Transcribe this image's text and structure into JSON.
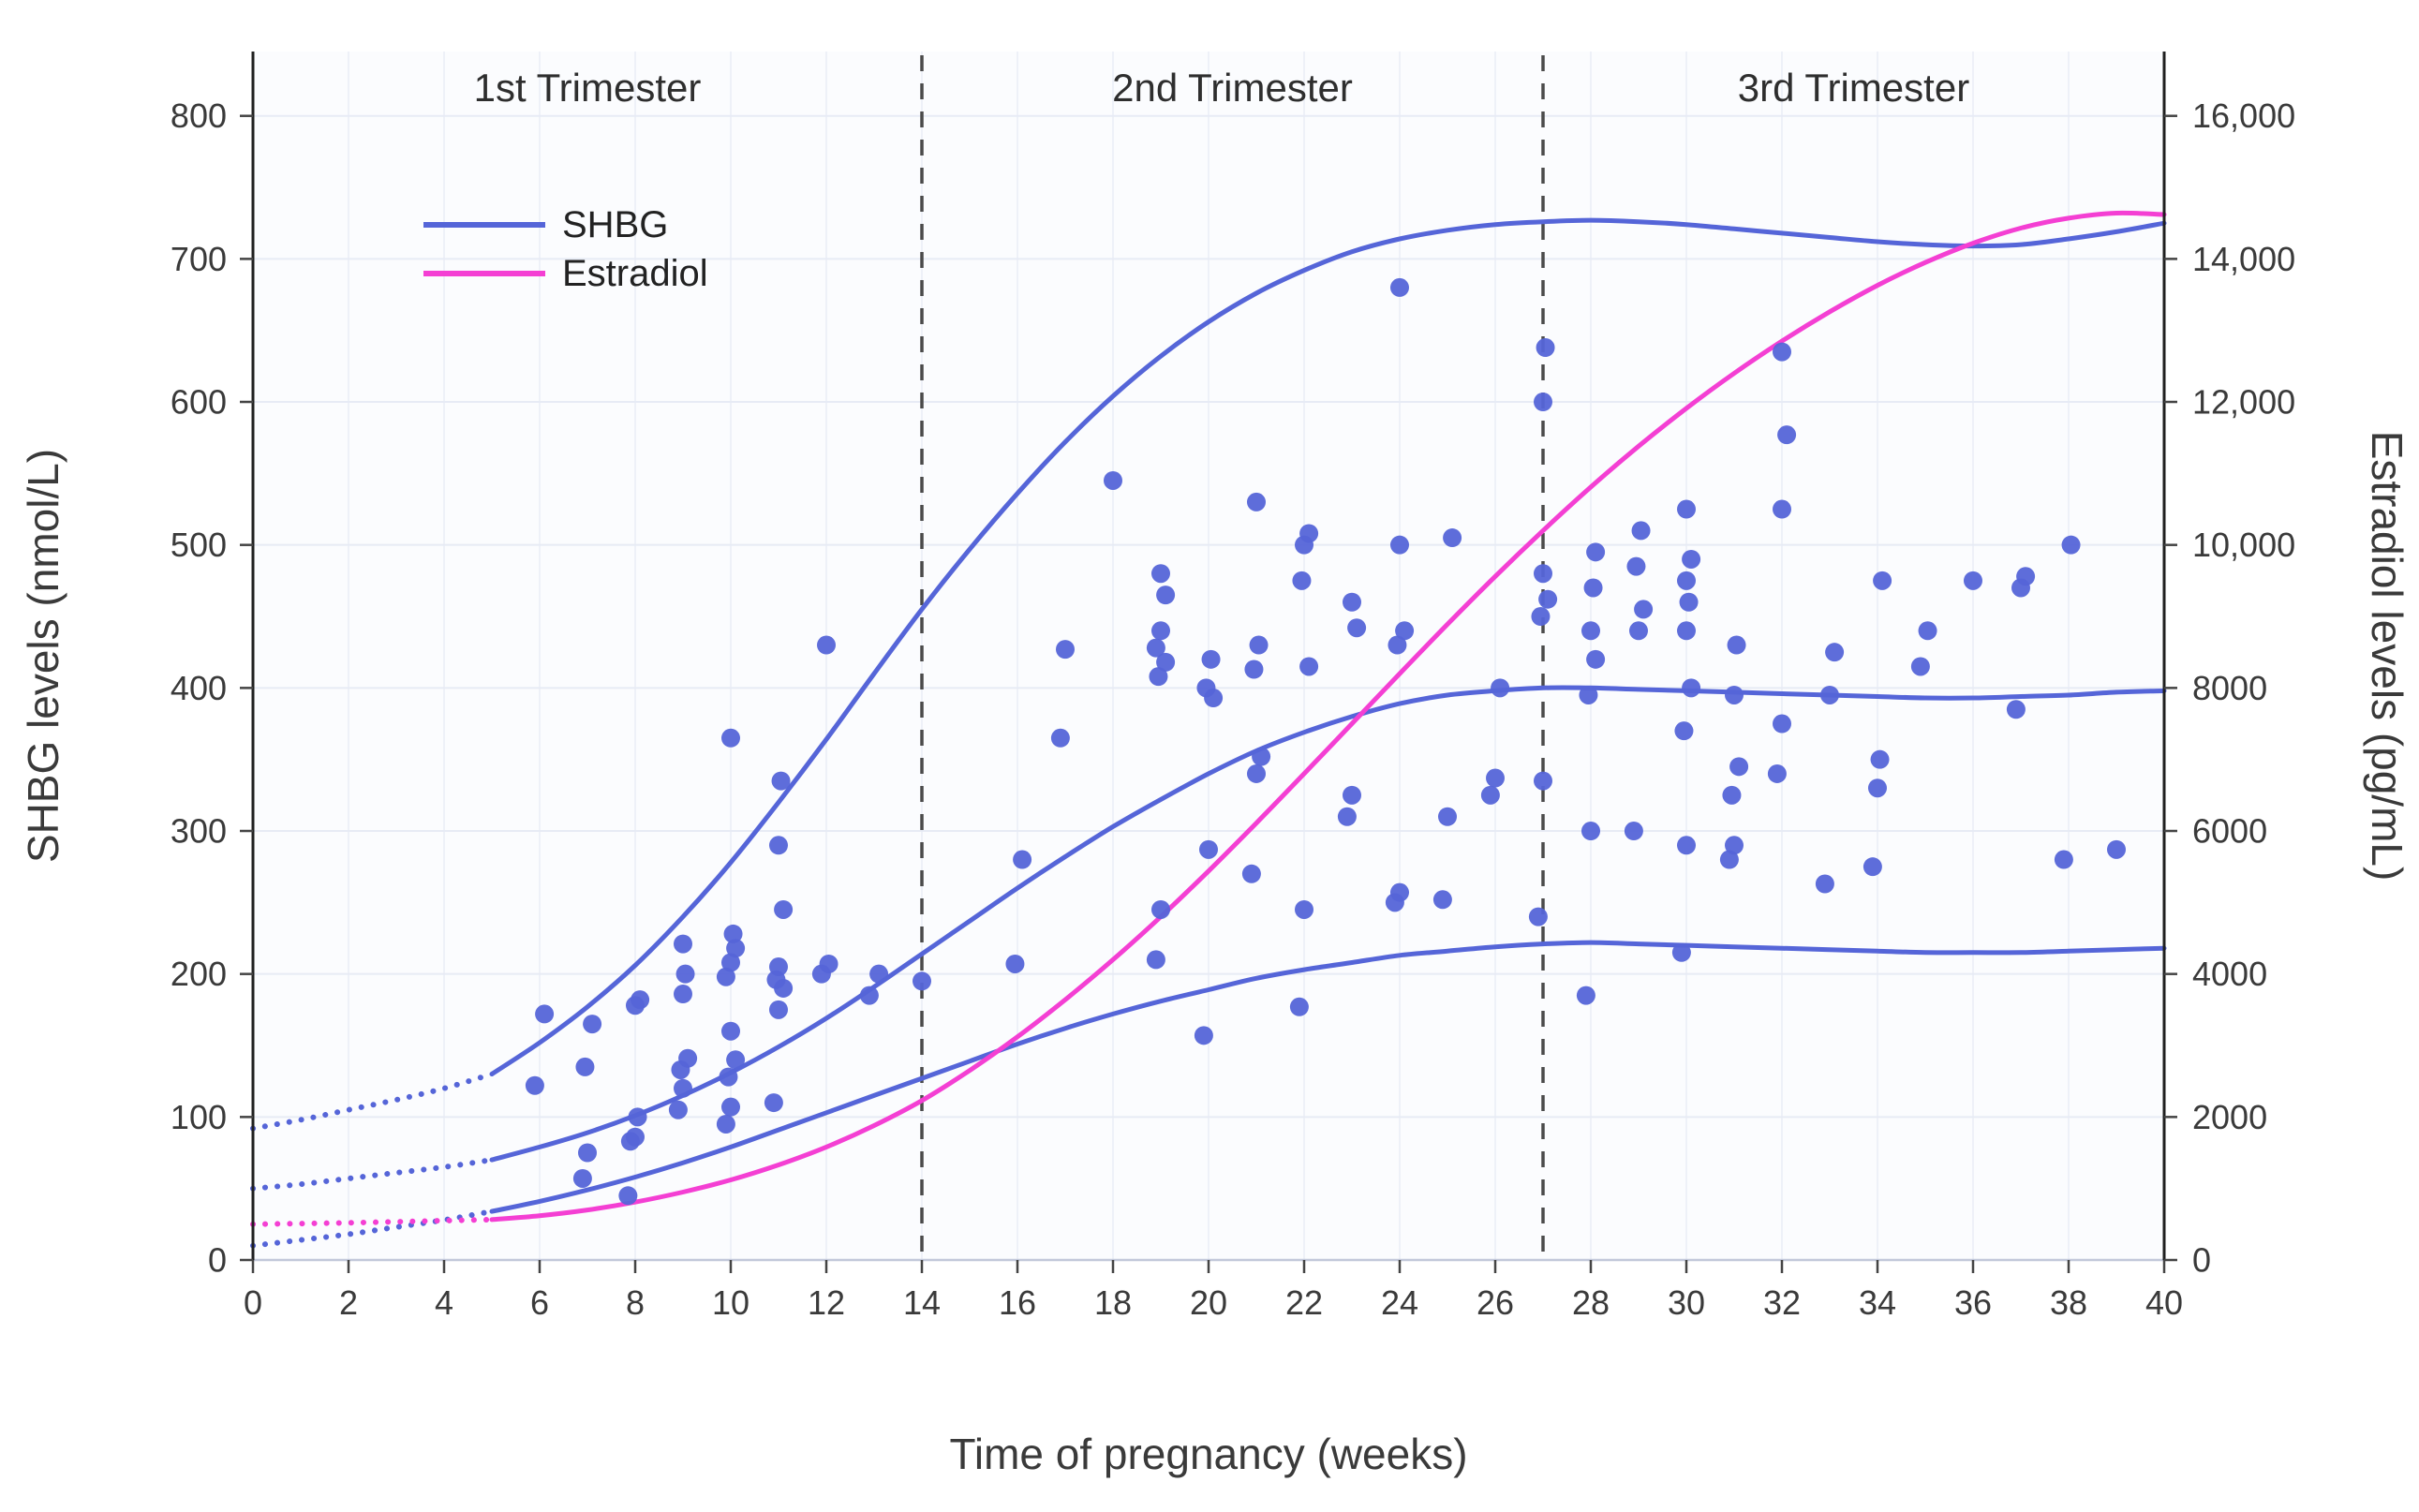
{
  "colors": {
    "shbg": "#5565d8",
    "estradiol": "#f43fd3",
    "grid": "#e7ebf5",
    "grid_vertical": "#eef1f8",
    "divider": "#4a4a4a",
    "text": "#3a3a3a",
    "spine": "#1f1f1f",
    "baseline": "#c2c8da",
    "plot_background": "#fbfcfe"
  },
  "chart_data": {
    "type": "line+scatter",
    "title": "",
    "xlabel": "Time of pregnancy (weeks)",
    "ylabel_left": "SHBG levels (nmol/L)",
    "ylabel_right": "Estradiol levels (pg/mL)",
    "xlim": [
      0,
      40
    ],
    "ylim_left": [
      0,
      845
    ],
    "ylim_right": [
      0,
      16900
    ],
    "x_ticks": [
      0,
      2,
      4,
      6,
      8,
      10,
      12,
      14,
      16,
      18,
      20,
      22,
      24,
      26,
      28,
      30,
      32,
      34,
      36,
      38,
      40
    ],
    "y_left_ticks": [
      0,
      100,
      200,
      300,
      400,
      500,
      600,
      700,
      800
    ],
    "y_right_ticks": [
      {
        "value": 0,
        "label": "0"
      },
      {
        "value": 2000,
        "label": "2000"
      },
      {
        "value": 4000,
        "label": "4000"
      },
      {
        "value": 6000,
        "label": "6000"
      },
      {
        "value": 8000,
        "label": "8000"
      },
      {
        "value": 10000,
        "label": "10,000"
      },
      {
        "value": 12000,
        "label": "12,000"
      },
      {
        "value": 14000,
        "label": "14,000"
      },
      {
        "value": 16000,
        "label": "16,000"
      }
    ],
    "grid": true,
    "legend_position": "upper-left-inside",
    "trimesters": {
      "divider_weeks": [
        14,
        27
      ],
      "labels": [
        {
          "text": "1st Trimester",
          "center_week": 7
        },
        {
          "text": "2nd Trimester",
          "center_week": 20.5
        },
        {
          "text": "3rd Trimester",
          "center_week": 33.5
        }
      ]
    },
    "legend": [
      {
        "label": "SHBG",
        "color": "#5565d8"
      },
      {
        "label": "Estradiol",
        "color": "#f43fd3"
      }
    ],
    "series": [
      {
        "id": "shbg-upper",
        "name": "SHBG upper reference limit",
        "axis": "left",
        "color": "#5565d8",
        "dotted_until_week": 5,
        "points": [
          [
            0,
            92
          ],
          [
            1,
            98
          ],
          [
            2,
            105
          ],
          [
            3,
            112
          ],
          [
            4,
            120
          ],
          [
            5,
            130
          ],
          [
            6,
            152
          ],
          [
            7,
            177
          ],
          [
            8,
            206
          ],
          [
            9,
            240
          ],
          [
            10,
            278
          ],
          [
            11,
            320
          ],
          [
            12,
            364
          ],
          [
            13,
            410
          ],
          [
            14,
            455
          ],
          [
            15,
            497
          ],
          [
            16,
            536
          ],
          [
            17,
            572
          ],
          [
            18,
            604
          ],
          [
            19,
            632
          ],
          [
            20,
            656
          ],
          [
            21,
            676
          ],
          [
            22,
            692
          ],
          [
            23,
            705
          ],
          [
            24,
            714
          ],
          [
            25,
            720
          ],
          [
            26,
            724
          ],
          [
            27,
            726
          ],
          [
            28,
            727
          ],
          [
            29,
            726
          ],
          [
            30,
            724
          ],
          [
            31,
            721
          ],
          [
            32,
            718
          ],
          [
            33,
            715
          ],
          [
            34,
            712
          ],
          [
            35,
            710
          ],
          [
            36,
            709
          ],
          [
            37,
            710
          ],
          [
            38,
            714
          ],
          [
            39,
            719
          ],
          [
            40,
            725
          ]
        ]
      },
      {
        "id": "shbg-median",
        "name": "SHBG median",
        "axis": "left",
        "color": "#5565d8",
        "dotted_until_week": 5,
        "points": [
          [
            0,
            50
          ],
          [
            1,
            53
          ],
          [
            2,
            57
          ],
          [
            3,
            61
          ],
          [
            4,
            65
          ],
          [
            5,
            70
          ],
          [
            6,
            79
          ],
          [
            7,
            89
          ],
          [
            8,
            101
          ],
          [
            9,
            115
          ],
          [
            10,
            131
          ],
          [
            11,
            149
          ],
          [
            12,
            169
          ],
          [
            13,
            191
          ],
          [
            14,
            214
          ],
          [
            15,
            237
          ],
          [
            16,
            260
          ],
          [
            17,
            282
          ],
          [
            18,
            303
          ],
          [
            19,
            322
          ],
          [
            20,
            340
          ],
          [
            21,
            356
          ],
          [
            22,
            369
          ],
          [
            23,
            380
          ],
          [
            24,
            389
          ],
          [
            25,
            395
          ],
          [
            26,
            398
          ],
          [
            27,
            400
          ],
          [
            28,
            400
          ],
          [
            29,
            399
          ],
          [
            30,
            398
          ],
          [
            31,
            397
          ],
          [
            32,
            396
          ],
          [
            33,
            395
          ],
          [
            34,
            394
          ],
          [
            35,
            393
          ],
          [
            36,
            393
          ],
          [
            37,
            394
          ],
          [
            38,
            395
          ],
          [
            39,
            397
          ],
          [
            40,
            398
          ]
        ]
      },
      {
        "id": "shbg-lower",
        "name": "SHBG lower reference limit",
        "axis": "left",
        "color": "#5565d8",
        "dotted_until_week": 5,
        "points": [
          [
            0,
            10
          ],
          [
            1,
            14
          ],
          [
            2,
            18
          ],
          [
            3,
            23
          ],
          [
            4,
            28
          ],
          [
            5,
            34
          ],
          [
            6,
            41
          ],
          [
            7,
            49
          ],
          [
            8,
            58
          ],
          [
            9,
            68
          ],
          [
            10,
            79
          ],
          [
            11,
            91
          ],
          [
            12,
            103
          ],
          [
            13,
            115
          ],
          [
            14,
            127
          ],
          [
            15,
            139
          ],
          [
            16,
            151
          ],
          [
            17,
            162
          ],
          [
            18,
            172
          ],
          [
            19,
            181
          ],
          [
            20,
            189
          ],
          [
            21,
            197
          ],
          [
            22,
            203
          ],
          [
            23,
            208
          ],
          [
            24,
            213
          ],
          [
            25,
            216
          ],
          [
            26,
            219
          ],
          [
            27,
            221
          ],
          [
            28,
            222
          ],
          [
            29,
            221
          ],
          [
            30,
            220
          ],
          [
            31,
            219
          ],
          [
            32,
            218
          ],
          [
            33,
            217
          ],
          [
            34,
            216
          ],
          [
            35,
            215
          ],
          [
            36,
            215
          ],
          [
            37,
            215
          ],
          [
            38,
            216
          ],
          [
            39,
            217
          ],
          [
            40,
            218
          ]
        ]
      },
      {
        "id": "estradiol",
        "name": "Estradiol",
        "axis": "right",
        "color": "#f43fd3",
        "dotted_until_week": 5,
        "points": [
          [
            0,
            500
          ],
          [
            1,
            510
          ],
          [
            2,
            520
          ],
          [
            3,
            535
          ],
          [
            4,
            550
          ],
          [
            5,
            565
          ],
          [
            6,
            620
          ],
          [
            7,
            700
          ],
          [
            8,
            810
          ],
          [
            9,
            950
          ],
          [
            10,
            1120
          ],
          [
            11,
            1330
          ],
          [
            12,
            1580
          ],
          [
            13,
            1880
          ],
          [
            14,
            2230
          ],
          [
            15,
            2650
          ],
          [
            16,
            3120
          ],
          [
            17,
            3640
          ],
          [
            18,
            4200
          ],
          [
            19,
            4800
          ],
          [
            20,
            5440
          ],
          [
            21,
            6110
          ],
          [
            22,
            6800
          ],
          [
            23,
            7500
          ],
          [
            24,
            8200
          ],
          [
            25,
            8890
          ],
          [
            26,
            9560
          ],
          [
            27,
            10200
          ],
          [
            28,
            10810
          ],
          [
            29,
            11380
          ],
          [
            30,
            11910
          ],
          [
            31,
            12400
          ],
          [
            32,
            12850
          ],
          [
            33,
            13260
          ],
          [
            34,
            13630
          ],
          [
            35,
            13950
          ],
          [
            36,
            14220
          ],
          [
            37,
            14430
          ],
          [
            38,
            14570
          ],
          [
            39,
            14640
          ],
          [
            40,
            14620
          ]
        ]
      }
    ],
    "scatter": {
      "id": "shbg-observations",
      "name": "SHBG individual observations",
      "axis": "left",
      "color": "#5565d8",
      "points": [
        [
          5.9,
          122
        ],
        [
          6.1,
          172
        ],
        [
          6.9,
          57
        ],
        [
          7.0,
          75
        ],
        [
          6.95,
          135
        ],
        [
          7.1,
          165
        ],
        [
          7.85,
          45
        ],
        [
          7.9,
          83
        ],
        [
          8.0,
          86
        ],
        [
          8.05,
          100
        ],
        [
          8.0,
          178
        ],
        [
          8.1,
          182
        ],
        [
          8.9,
          105
        ],
        [
          9.0,
          120
        ],
        [
          8.95,
          133
        ],
        [
          9.1,
          141
        ],
        [
          9.0,
          186
        ],
        [
          9.05,
          200
        ],
        [
          9.0,
          221
        ],
        [
          9.9,
          95
        ],
        [
          10.0,
          107
        ],
        [
          9.95,
          128
        ],
        [
          10.1,
          140
        ],
        [
          10.0,
          160
        ],
        [
          9.9,
          198
        ],
        [
          10.0,
          208
        ],
        [
          10.1,
          218
        ],
        [
          10.05,
          228
        ],
        [
          10.0,
          365
        ],
        [
          10.9,
          110
        ],
        [
          11.0,
          175
        ],
        [
          11.1,
          190
        ],
        [
          10.95,
          196
        ],
        [
          11.0,
          205
        ],
        [
          11.1,
          245
        ],
        [
          11.0,
          290
        ],
        [
          11.05,
          335
        ],
        [
          11.9,
          200
        ],
        [
          12.05,
          207
        ],
        [
          12.0,
          430
        ],
        [
          12.9,
          185
        ],
        [
          13.1,
          200
        ],
        [
          14.0,
          195
        ],
        [
          15.95,
          207
        ],
        [
          16.1,
          280
        ],
        [
          16.9,
          365
        ],
        [
          17.0,
          427
        ],
        [
          18.0,
          545
        ],
        [
          18.9,
          210
        ],
        [
          19.0,
          245
        ],
        [
          18.95,
          408
        ],
        [
          19.1,
          418
        ],
        [
          18.9,
          428
        ],
        [
          19.0,
          440
        ],
        [
          19.1,
          465
        ],
        [
          19.0,
          480
        ],
        [
          19.9,
          157
        ],
        [
          20.0,
          287
        ],
        [
          20.1,
          393
        ],
        [
          19.95,
          400
        ],
        [
          20.05,
          420
        ],
        [
          20.9,
          270
        ],
        [
          21.0,
          340
        ],
        [
          21.1,
          352
        ],
        [
          20.95,
          413
        ],
        [
          21.05,
          430
        ],
        [
          21.0,
          530
        ],
        [
          21.9,
          177
        ],
        [
          22.0,
          245
        ],
        [
          22.1,
          415
        ],
        [
          21.95,
          475
        ],
        [
          22.0,
          500
        ],
        [
          22.1,
          508
        ],
        [
          22.9,
          310
        ],
        [
          23.0,
          325
        ],
        [
          23.1,
          442
        ],
        [
          23.0,
          460
        ],
        [
          23.9,
          250
        ],
        [
          24.0,
          257
        ],
        [
          23.95,
          430
        ],
        [
          24.1,
          440
        ],
        [
          24.0,
          500
        ],
        [
          24.0,
          680
        ],
        [
          24.9,
          252
        ],
        [
          25.0,
          310
        ],
        [
          25.1,
          505
        ],
        [
          25.9,
          325
        ],
        [
          26.0,
          337
        ],
        [
          26.1,
          400
        ],
        [
          26.9,
          240
        ],
        [
          27.0,
          335
        ],
        [
          26.95,
          450
        ],
        [
          27.1,
          462
        ],
        [
          27.0,
          480
        ],
        [
          27.0,
          600
        ],
        [
          27.05,
          638
        ],
        [
          27.9,
          185
        ],
        [
          28.0,
          300
        ],
        [
          27.95,
          395
        ],
        [
          28.1,
          420
        ],
        [
          28.0,
          440
        ],
        [
          28.05,
          470
        ],
        [
          28.1,
          495
        ],
        [
          28.9,
          300
        ],
        [
          29.0,
          440
        ],
        [
          29.1,
          455
        ],
        [
          28.95,
          485
        ],
        [
          29.05,
          510
        ],
        [
          29.9,
          215
        ],
        [
          30.0,
          290
        ],
        [
          29.95,
          370
        ],
        [
          30.1,
          400
        ],
        [
          30.0,
          440
        ],
        [
          30.05,
          460
        ],
        [
          30.0,
          475
        ],
        [
          30.1,
          490
        ],
        [
          30.0,
          525
        ],
        [
          30.9,
          280
        ],
        [
          31.0,
          290
        ],
        [
          30.95,
          325
        ],
        [
          31.1,
          345
        ],
        [
          31.0,
          395
        ],
        [
          31.05,
          430
        ],
        [
          31.9,
          340
        ],
        [
          32.0,
          375
        ],
        [
          32.0,
          525
        ],
        [
          32.1,
          577
        ],
        [
          32.0,
          635
        ],
        [
          32.9,
          263
        ],
        [
          33.0,
          395
        ],
        [
          33.1,
          425
        ],
        [
          33.9,
          275
        ],
        [
          34.0,
          330
        ],
        [
          34.05,
          350
        ],
        [
          34.1,
          475
        ],
        [
          34.9,
          415
        ],
        [
          35.05,
          440
        ],
        [
          36.0,
          475
        ],
        [
          36.9,
          385
        ],
        [
          37.0,
          470
        ],
        [
          37.1,
          478
        ],
        [
          37.9,
          280
        ],
        [
          38.05,
          500
        ],
        [
          39.0,
          287
        ]
      ]
    }
  }
}
